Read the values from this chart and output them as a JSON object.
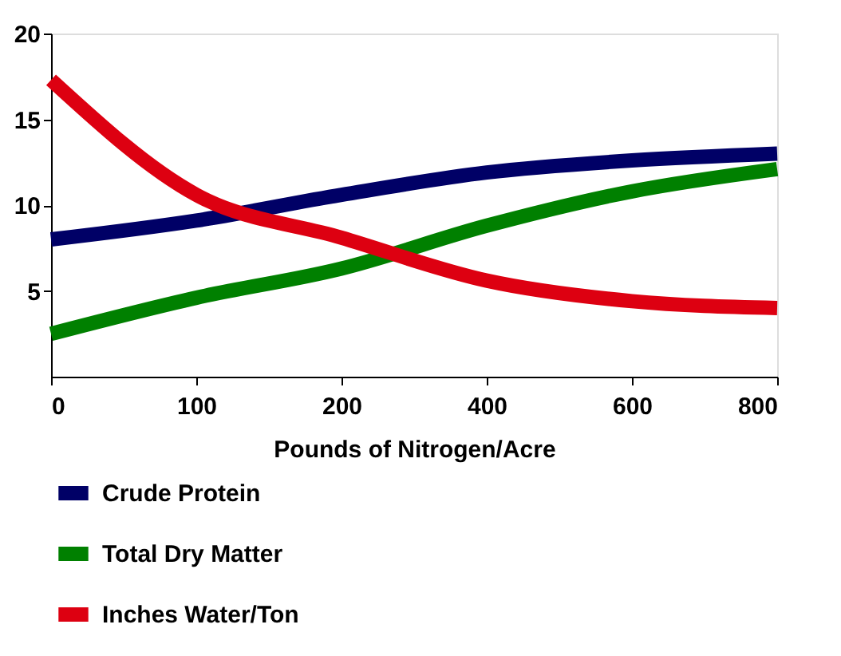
{
  "chart_data": {
    "type": "line",
    "xlabel": "Pounds of Nitrogen/Acre",
    "categories": [
      "0",
      "100",
      "200",
      "400",
      "600",
      "800"
    ],
    "series": [
      {
        "name": "Crude Protein",
        "color": "#000066",
        "values": [
          8.0,
          9.1,
          10.6,
          11.9,
          12.6,
          13.0
        ]
      },
      {
        "name": "Total Dry Matter",
        "color": "#008000",
        "values": [
          2.5,
          4.6,
          6.3,
          8.8,
          10.8,
          12.1
        ]
      },
      {
        "name": "Inches Water/Ton",
        "color": "#dd0011",
        "values": [
          17.3,
          10.6,
          8.1,
          5.6,
          4.4,
          4.0
        ]
      }
    ],
    "ylim": [
      0,
      20
    ],
    "yticks": [
      5,
      10,
      15,
      20
    ],
    "grid": false,
    "legend": "bottom",
    "marker": "none",
    "line_style": "solid"
  }
}
